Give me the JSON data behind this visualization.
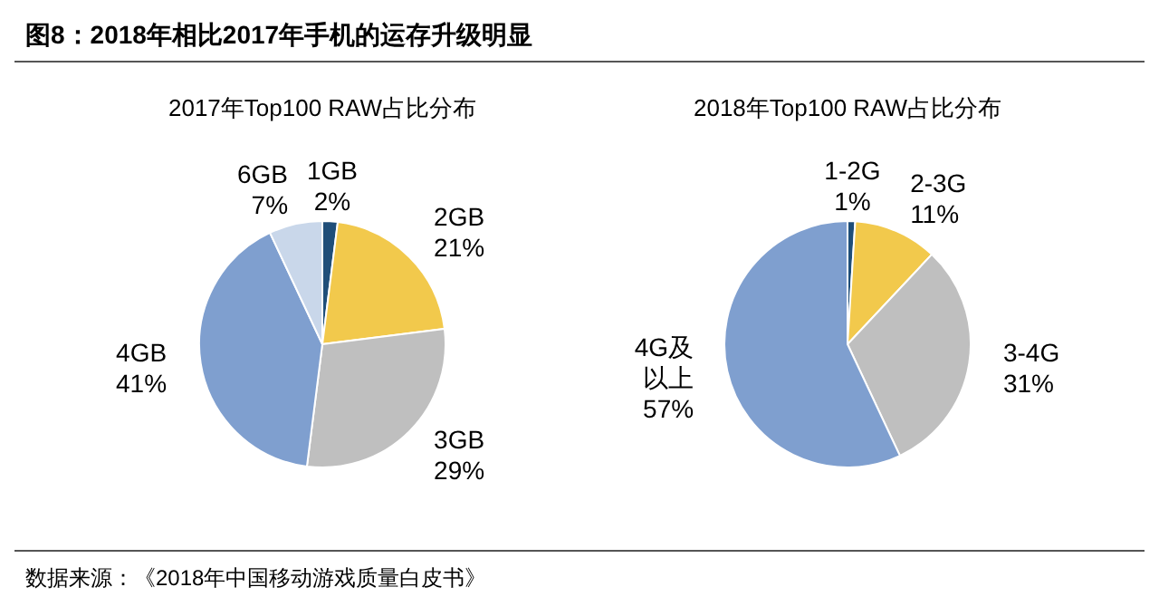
{
  "chart_data": [
    {
      "type": "pie",
      "title": "2017年Top100 RAW占比分布",
      "annotations": [
        "图8：2018年相比2017年手机的运存升级明显",
        "数据来源：《2018年中国移动游戏质量白皮书》"
      ],
      "categories": [
        "1GB",
        "2GB",
        "3GB",
        "4GB",
        "6GB"
      ],
      "values": [
        2,
        21,
        29,
        41,
        7
      ],
      "value_labels": [
        "2%",
        "21%",
        "29%",
        "41%",
        "7%"
      ],
      "colors": [
        "#1f4e79",
        "#f2c94c",
        "#bfbfbf",
        "#7f9fcf",
        "#c9d7ea"
      ]
    },
    {
      "type": "pie",
      "title": "2018年Top100 RAW占比分布",
      "categories": [
        "1-2G",
        "2-3G",
        "3-4G",
        "4G及以上"
      ],
      "values": [
        1,
        11,
        31,
        57
      ],
      "value_labels": [
        "1%",
        "11%",
        "31%",
        "57%"
      ],
      "colors": [
        "#1f4e79",
        "#f2c94c",
        "#bfbfbf",
        "#7f9fcf"
      ]
    }
  ]
}
